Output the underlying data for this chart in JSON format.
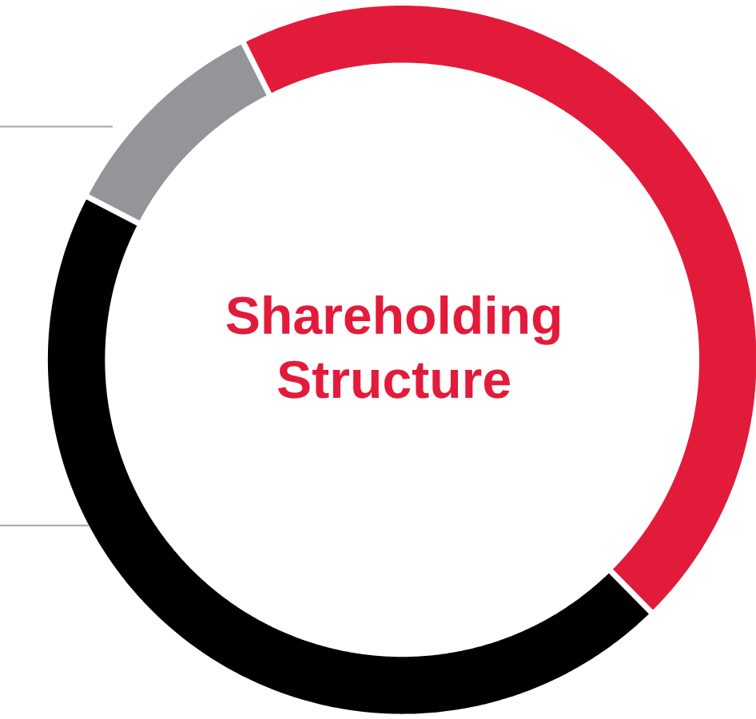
{
  "chart_data": {
    "type": "donut",
    "title": "Shareholding Structure",
    "categories": [
      null,
      null,
      null
    ],
    "values": [
      45,
      45,
      10
    ],
    "colors": [
      "#e31b3b",
      "#000000",
      "#939598"
    ]
  }
}
